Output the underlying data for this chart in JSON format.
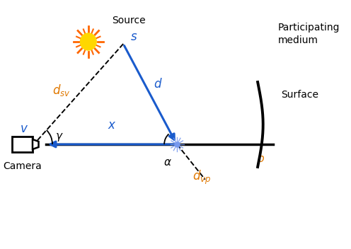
{
  "bg_color": "#ffffff",
  "label_source": "Source",
  "label_s": "$s$",
  "label_camera": "Camera",
  "label_v": "$v$",
  "label_d": "$d$",
  "label_x": "$x$",
  "label_dsv": "$d_{sv}$",
  "label_dvp": "$d_{vp}$",
  "label_gamma": "$\\gamma$",
  "label_alpha": "$\\alpha$",
  "label_p": "$p$",
  "label_surface": "Surface",
  "label_medium": "Participating\nmedium",
  "blue_color": "#1a5bcc",
  "black_color": "#000000",
  "text_blue": "#1a5bcc",
  "text_orange": "#e07800",
  "sun_color": "#FFD700",
  "sun_ray_color": "#FF6600",
  "scatter_color": "#7799ee"
}
